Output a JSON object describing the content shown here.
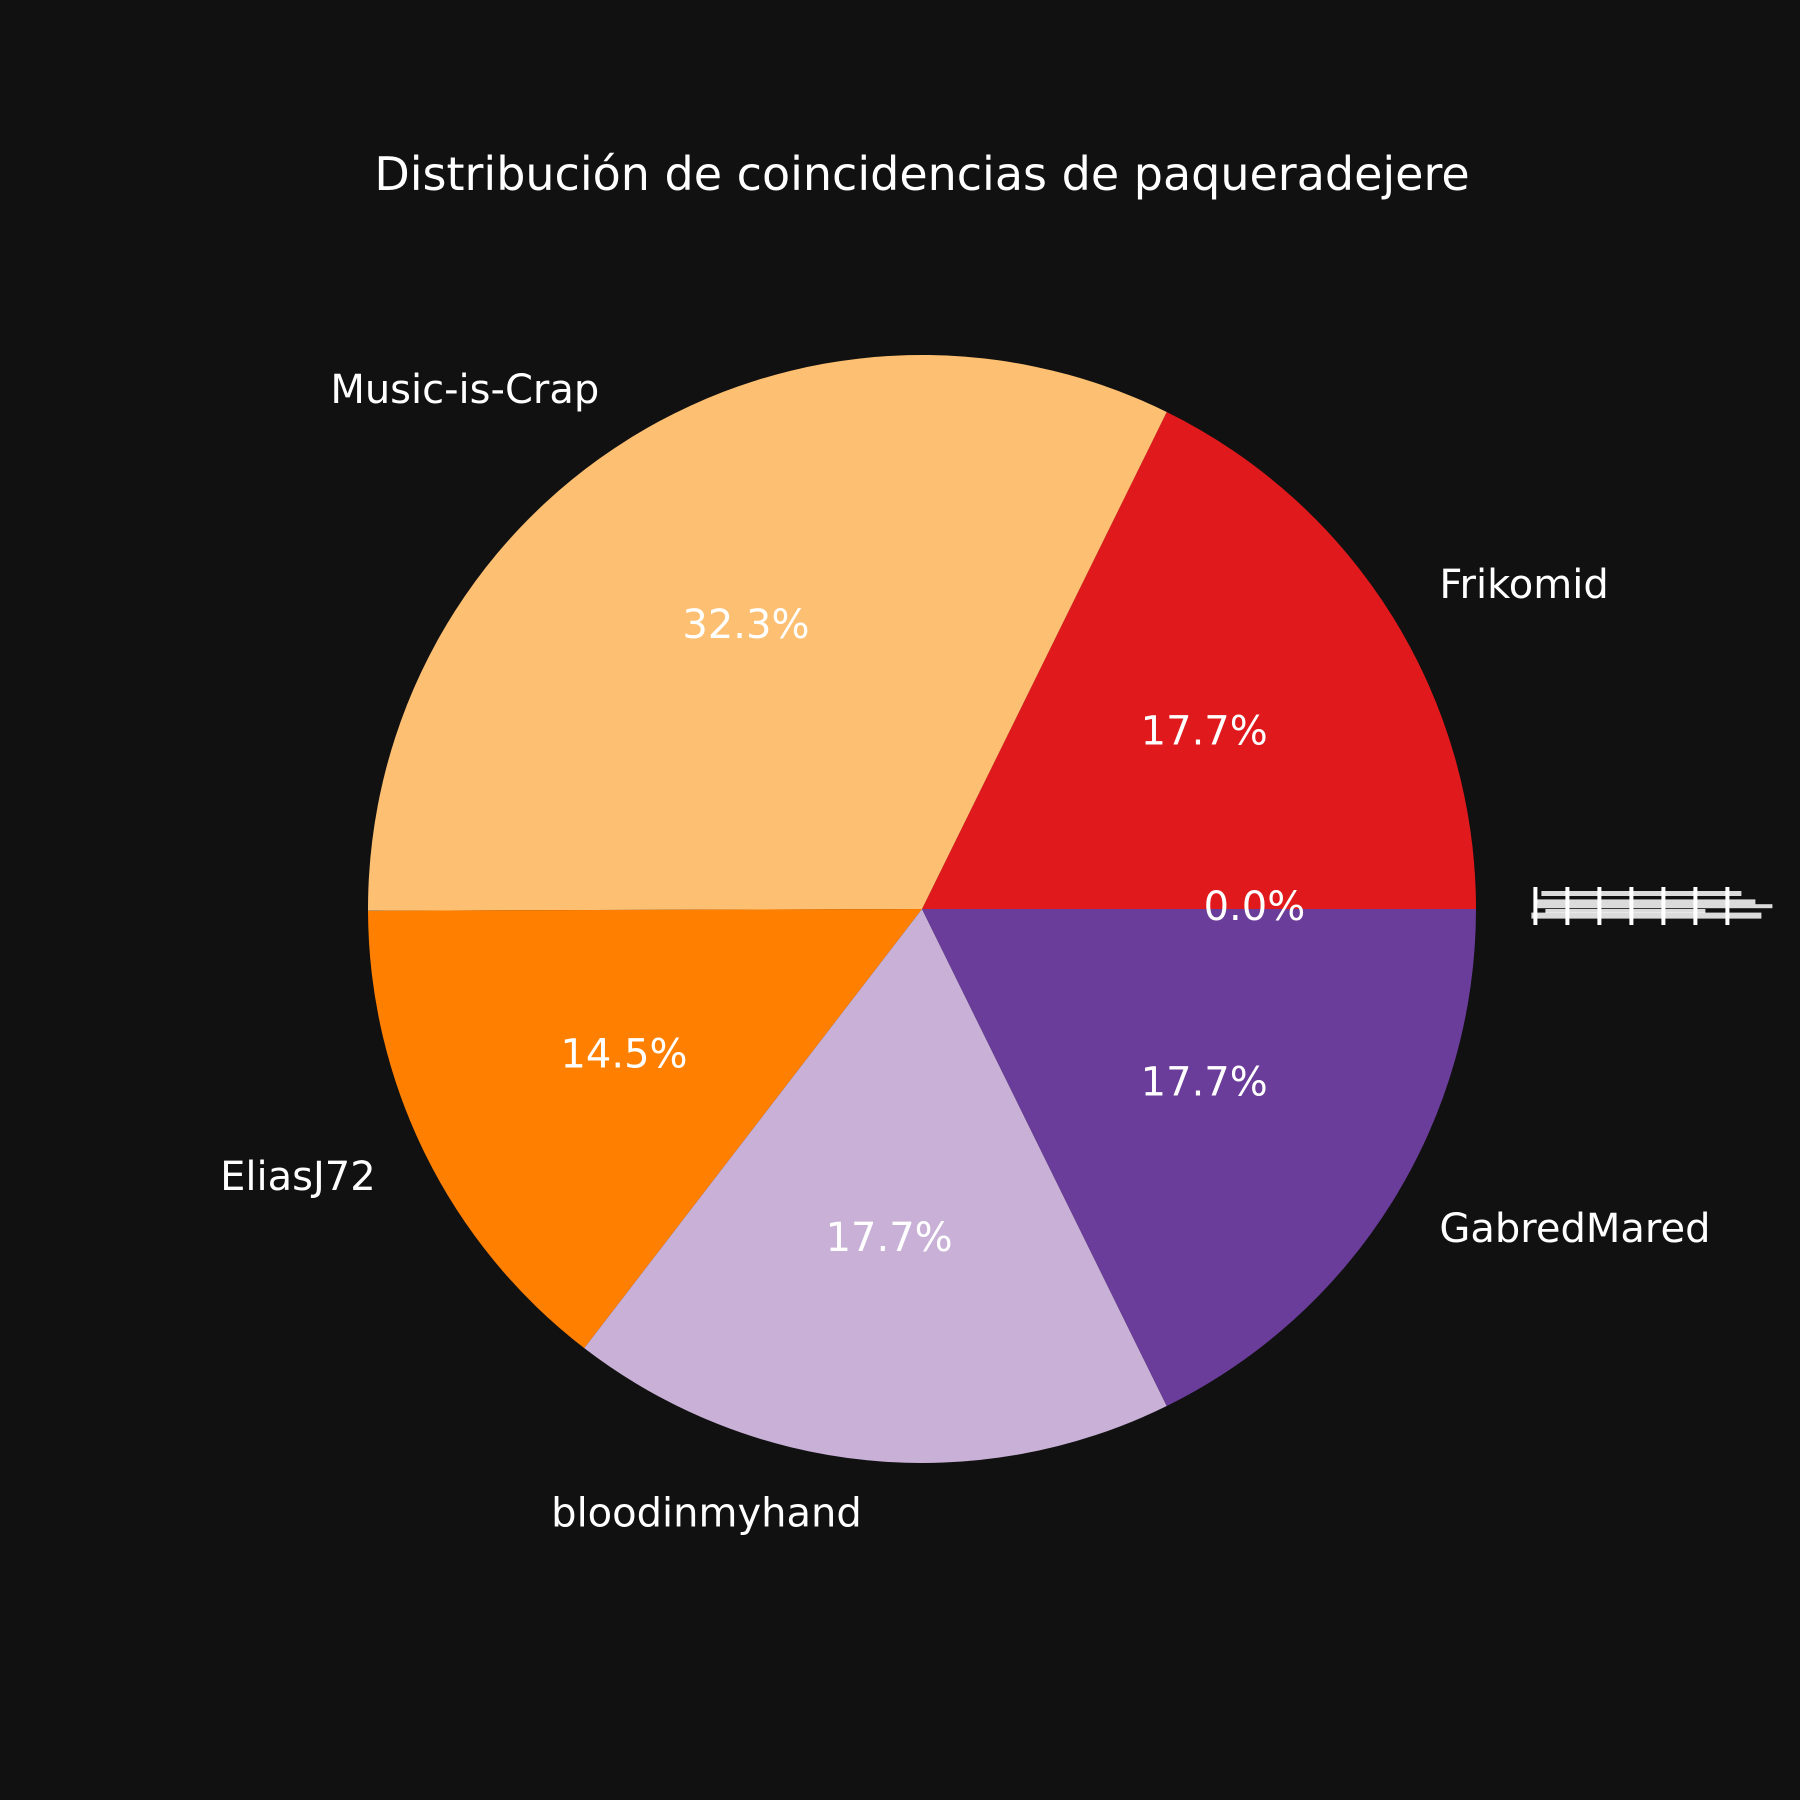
{
  "chart_data": {
    "type": "pie",
    "title": "Distribución de coincidencias de paqueradejere",
    "start_angle_deg": 0,
    "direction": "counterclockwise",
    "categories": [
      "Frikomid",
      "Music-is-Crap",
      "EliasJ72",
      "bloodinmyhand",
      "GabredMared"
    ],
    "values": [
      17.7,
      32.3,
      14.5,
      17.7,
      17.7
    ],
    "percent_labels": [
      "17.7%",
      "32.3%",
      "14.5%",
      "17.7%",
      "17.7%"
    ],
    "colors": [
      "#e0191c",
      "#fdbf71",
      "#ff7f00",
      "#c8b0d6",
      "#6a3d9a"
    ],
    "zero_slices": {
      "percent_label": "0.0%",
      "note_labels_overlapping_illegible": true
    }
  }
}
